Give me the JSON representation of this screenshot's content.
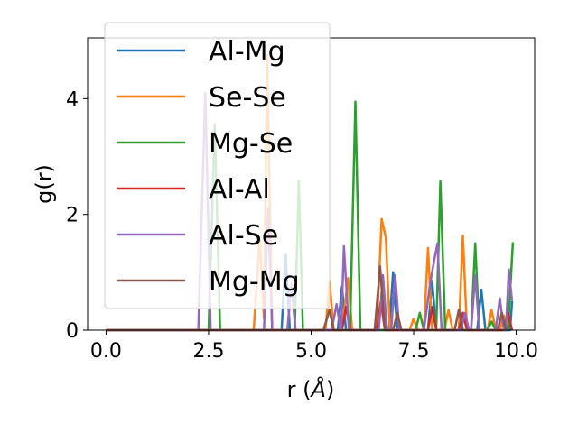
{
  "chart_data": {
    "type": "line",
    "xlabel_main": "r (",
    "xlabel_unit": "Å",
    "xlabel_close": ")",
    "ylabel": "g(r)",
    "xlim": [
      -0.45,
      10.45
    ],
    "ylim": [
      0,
      5.05
    ],
    "xticks": [
      0.0,
      2.5,
      5.0,
      7.5,
      10.0
    ],
    "xtick_labels": [
      "0.0",
      "2.5",
      "5.0",
      "7.5",
      "10.0"
    ],
    "yticks": [
      0,
      2,
      4
    ],
    "ytick_labels": [
      "0",
      "2",
      "4"
    ],
    "grid": false,
    "legend_placement": "upper-left",
    "series": [
      {
        "name": "Al-Mg",
        "color": "#1f77b4",
        "points": [
          [
            0,
            0
          ],
          [
            4.28,
            0
          ],
          [
            4.38,
            1.3
          ],
          [
            4.48,
            0
          ],
          [
            5.65,
            0
          ],
          [
            5.75,
            0.75
          ],
          [
            5.85,
            0
          ],
          [
            6.9,
            0
          ],
          [
            7.0,
            1.0
          ],
          [
            7.1,
            0
          ],
          [
            7.85,
            0
          ],
          [
            7.95,
            0.85
          ],
          [
            8.05,
            0
          ],
          [
            9.05,
            0
          ],
          [
            9.15,
            0.7
          ],
          [
            9.25,
            0
          ],
          [
            9.85,
            0
          ],
          [
            9.9,
            0.5
          ]
        ]
      },
      {
        "name": "Se-Se",
        "color": "#ff7f0e",
        "points": [
          [
            0,
            0
          ],
          [
            3.6,
            0
          ],
          [
            3.75,
            1.6
          ],
          [
            3.85,
            0.2
          ],
          [
            3.93,
            4.75
          ],
          [
            4.05,
            0
          ],
          [
            5.35,
            0
          ],
          [
            5.45,
            0.85
          ],
          [
            5.55,
            0
          ],
          [
            5.75,
            0
          ],
          [
            5.9,
            0.9
          ],
          [
            6.0,
            0
          ],
          [
            6.6,
            0
          ],
          [
            6.72,
            1.92
          ],
          [
            6.82,
            1.6
          ],
          [
            6.92,
            0
          ],
          [
            7.4,
            0
          ],
          [
            7.5,
            0.2
          ],
          [
            7.6,
            0
          ],
          [
            7.75,
            0
          ],
          [
            7.85,
            1.42
          ],
          [
            7.95,
            0
          ],
          [
            8.25,
            0
          ],
          [
            8.35,
            0.35
          ],
          [
            8.45,
            0
          ],
          [
            8.6,
            0
          ],
          [
            8.7,
            1.63
          ],
          [
            8.8,
            0
          ],
          [
            9.3,
            0
          ],
          [
            9.4,
            0.35
          ],
          [
            9.5,
            0
          ],
          [
            9.6,
            0
          ],
          [
            9.7,
            0.25
          ],
          [
            9.8,
            0
          ]
        ]
      },
      {
        "name": "Mg-Se",
        "color": "#2ca02c",
        "points": [
          [
            0,
            0
          ],
          [
            2.5,
            0
          ],
          [
            2.65,
            3.55
          ],
          [
            2.78,
            0
          ],
          [
            4.6,
            0
          ],
          [
            4.7,
            2.58
          ],
          [
            4.8,
            0
          ],
          [
            5.95,
            0
          ],
          [
            6.08,
            3.95
          ],
          [
            6.2,
            0
          ],
          [
            7.55,
            0
          ],
          [
            7.65,
            0.3
          ],
          [
            7.75,
            0
          ],
          [
            8.05,
            0
          ],
          [
            8.15,
            2.57
          ],
          [
            8.27,
            0
          ],
          [
            8.9,
            0
          ],
          [
            9.0,
            1.5
          ],
          [
            9.1,
            0
          ],
          [
            9.3,
            0
          ],
          [
            9.4,
            0.15
          ],
          [
            9.5,
            0
          ],
          [
            9.8,
            0
          ],
          [
            9.92,
            1.52
          ]
        ]
      },
      {
        "name": "Al-Al",
        "color": "#d62728",
        "points": [
          [
            0,
            0
          ],
          [
            5.75,
            0
          ],
          [
            5.85,
            0.4
          ],
          [
            5.95,
            0
          ],
          [
            6.6,
            0
          ],
          [
            6.7,
            0.5
          ],
          [
            6.8,
            0
          ],
          [
            7.85,
            0
          ],
          [
            7.95,
            0.4
          ],
          [
            8.05,
            0
          ],
          [
            8.6,
            0
          ],
          [
            8.7,
            0.3
          ],
          [
            8.8,
            0
          ],
          [
            9.7,
            0
          ],
          [
            9.8,
            0.3
          ],
          [
            9.9,
            0
          ]
        ]
      },
      {
        "name": "Al-Se",
        "color": "#9467bd",
        "points": [
          [
            0,
            0
          ],
          [
            2.25,
            0
          ],
          [
            2.42,
            4.1
          ],
          [
            2.55,
            0
          ],
          [
            3.85,
            0
          ],
          [
            3.95,
            2.1
          ],
          [
            4.05,
            0
          ],
          [
            4.42,
            0
          ],
          [
            4.52,
            0.8
          ],
          [
            4.62,
            0
          ],
          [
            5.5,
            0
          ],
          [
            5.62,
            0.45
          ],
          [
            5.72,
            0
          ],
          [
            5.73,
            0
          ],
          [
            5.8,
            1.45
          ],
          [
            5.92,
            0
          ],
          [
            6.65,
            0
          ],
          [
            6.75,
            0.95
          ],
          [
            6.85,
            0
          ],
          [
            6.95,
            0
          ],
          [
            7.05,
            0.95
          ],
          [
            7.15,
            0
          ],
          [
            7.75,
            0
          ],
          [
            7.9,
            0.8
          ],
          [
            8.0,
            1.2
          ],
          [
            8.08,
            1.5
          ],
          [
            8.18,
            0
          ],
          [
            8.65,
            0
          ],
          [
            8.75,
            0.3
          ],
          [
            8.85,
            0
          ],
          [
            8.9,
            0
          ],
          [
            9.0,
            0.95
          ],
          [
            9.1,
            0
          ],
          [
            9.5,
            0
          ],
          [
            9.6,
            0.55
          ],
          [
            9.7,
            0
          ],
          [
            9.75,
            0
          ],
          [
            9.82,
            1.05
          ],
          [
            9.9,
            0.5
          ]
        ]
      },
      {
        "name": "Mg-Mg",
        "color": "#8c564b",
        "points": [
          [
            0,
            0
          ],
          [
            5.3,
            0
          ],
          [
            5.45,
            0.35
          ],
          [
            5.55,
            0
          ],
          [
            6.55,
            0
          ],
          [
            6.68,
            1.1
          ],
          [
            6.8,
            0
          ],
          [
            7.0,
            0
          ],
          [
            7.1,
            0.3
          ],
          [
            7.2,
            0
          ],
          [
            8.5,
            0
          ],
          [
            8.6,
            0.35
          ],
          [
            8.7,
            0
          ],
          [
            9.55,
            0
          ],
          [
            9.65,
            0.3
          ],
          [
            9.75,
            0
          ]
        ]
      }
    ]
  }
}
